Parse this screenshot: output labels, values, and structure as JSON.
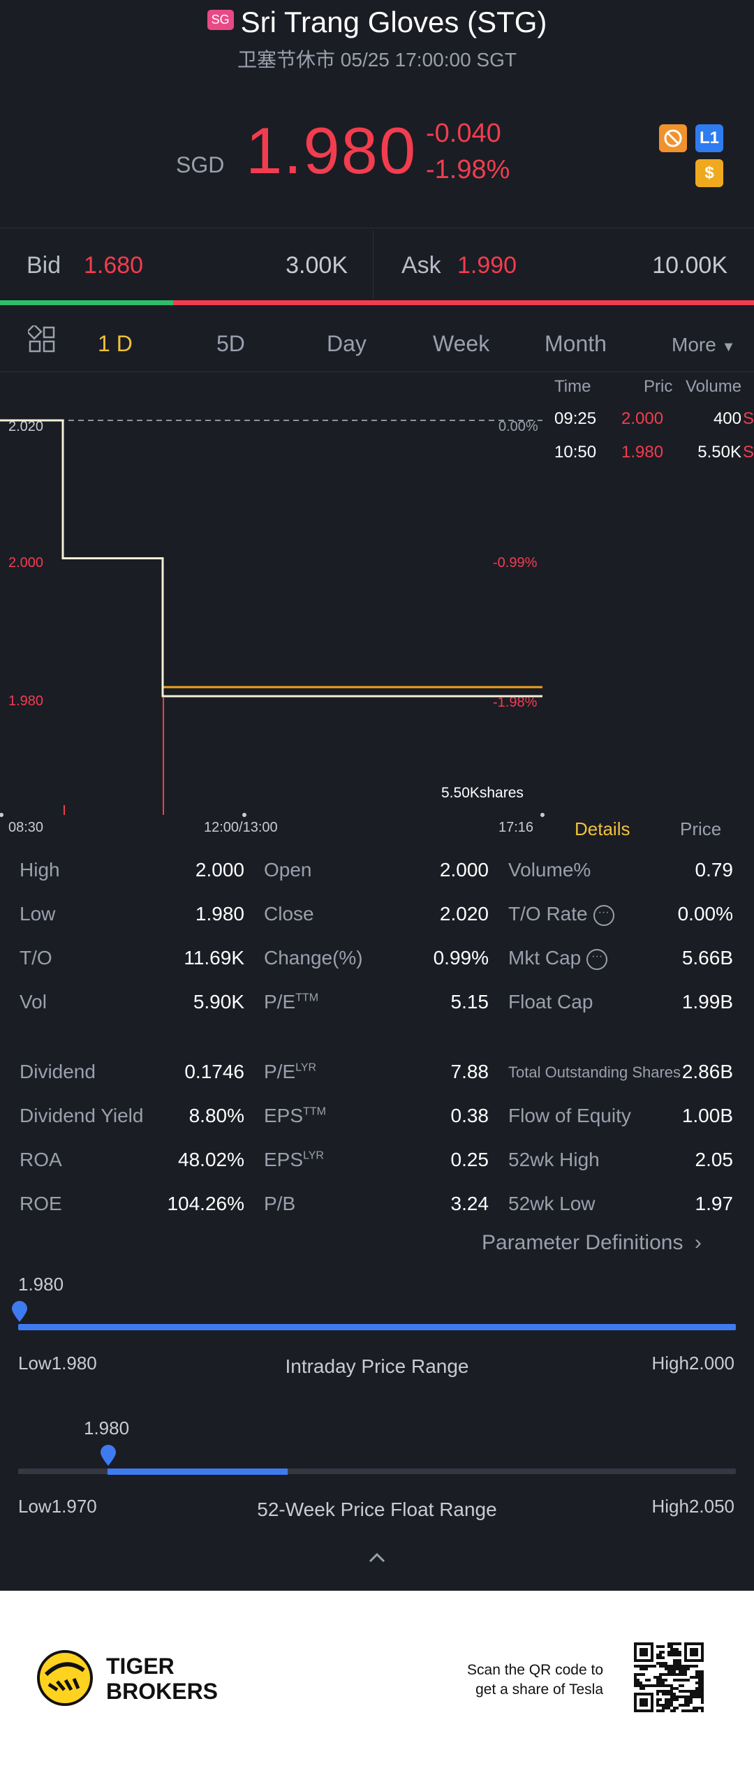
{
  "header": {
    "market_flag": "SG",
    "title": "Sri Trang Gloves (STG)",
    "subtitle": "卫塞节休市 05/25 17:00:00 SGT"
  },
  "quote": {
    "currency": "SGD",
    "price": "1.980",
    "change": "-0.040",
    "change_pct": "-1.98%"
  },
  "badges": {
    "level_label": "L1",
    "dollar_label": "$"
  },
  "bid_ask": {
    "bid_label": "Bid",
    "bid_price": "1.680",
    "bid_size": "3.00K",
    "ask_label": "Ask",
    "ask_price": "1.990",
    "ask_size": "10.00K",
    "bid_ratio": 0.23
  },
  "tabs": {
    "items": [
      "1 D",
      "5D",
      "Day",
      "Week",
      "Month"
    ],
    "more": "More",
    "active": "1 D"
  },
  "chart": {
    "y_labels": [
      "2.020",
      "2.000",
      "1.980"
    ],
    "pct_labels": [
      "0.00%",
      "-0.99%",
      "-1.98%"
    ],
    "x_labels": [
      "08:30",
      "12:00/13:00",
      "17:16"
    ],
    "volume_label": "5.50Kshares"
  },
  "chart_data": {
    "type": "line",
    "x": [
      "08:30",
      "09:25",
      "10:50",
      "17:16"
    ],
    "series": [
      {
        "values": [
          2.02,
          2.0,
          1.98,
          1.98
        ]
      }
    ],
    "reference_close": 2.02,
    "ylim": [
      1.98,
      2.02
    ]
  },
  "time_sales": {
    "headers": [
      "Time",
      "Pric",
      "Volume"
    ],
    "rows": [
      {
        "time": "09:25",
        "price": "2.000",
        "volume": "400",
        "flag": "S"
      },
      {
        "time": "10:50",
        "price": "1.980",
        "volume": "5.50K",
        "flag": "S"
      }
    ]
  },
  "side_tabs": {
    "details": "Details",
    "price": "Price"
  },
  "stats": {
    "rows": [
      [
        [
          "High",
          "2.000"
        ],
        [
          "Open",
          "2.000"
        ],
        [
          "Volume%",
          "0.79"
        ]
      ],
      [
        [
          "Low",
          "1.980"
        ],
        [
          "Close",
          "2.020"
        ],
        [
          "T/O Rate",
          "0.00%"
        ]
      ],
      [
        [
          "T/O",
          "11.69K"
        ],
        [
          "Change(%)",
          "0.99%"
        ],
        [
          "Mkt Cap",
          "5.66B"
        ]
      ],
      [
        [
          "Vol",
          "5.90K"
        ],
        [
          "P/E",
          "5.15"
        ],
        [
          "Float Cap",
          "1.99B"
        ]
      ],
      [
        [
          "Dividend",
          "0.1746"
        ],
        [
          "P/E",
          "7.88"
        ],
        [
          "Total Outstanding Shares",
          "2.86B"
        ]
      ],
      [
        [
          "Dividend Yield",
          "8.80%"
        ],
        [
          "EPS",
          "0.38"
        ],
        [
          "Flow of Equity",
          "1.00B"
        ]
      ],
      [
        [
          "ROA",
          "48.02%"
        ],
        [
          "EPS",
          "0.25"
        ],
        [
          "52wk High",
          "2.05"
        ]
      ],
      [
        [
          "ROE",
          "104.26%"
        ],
        [
          "P/B",
          "3.24"
        ],
        [
          "52wk Low",
          "1.97"
        ]
      ]
    ],
    "sup_ttm": "TTM",
    "sup_lyr": "LYR",
    "param_link": "Parameter Definitions"
  },
  "ranges": {
    "intraday": {
      "current": "1.980",
      "low_label": "Low",
      "low": "1.980",
      "high_label": "High",
      "high": "2.000",
      "title": "Intraday Price Range",
      "position": 0.0
    },
    "week52": {
      "current": "1.980",
      "low_label": "Low",
      "low": "1.970",
      "high_label": "High",
      "high": "2.050",
      "title": "52-Week Price Float Range",
      "position": 0.125
    }
  },
  "footer": {
    "brand_line1": "TIGER",
    "brand_line2": "BROKERS",
    "promo_line1": "Scan the QR code to",
    "promo_line2": "get a share of Tesla"
  },
  "colors": {
    "up": "#2ebd6b",
    "down": "#f23d4f",
    "accent": "#f0c23a",
    "slider": "#3f7bf0"
  }
}
